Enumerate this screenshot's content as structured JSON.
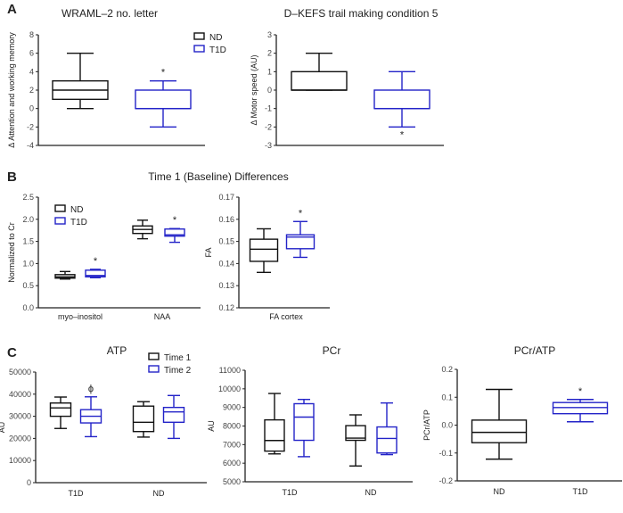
{
  "colors": {
    "group1": "#111111",
    "group2": "#2323c8"
  },
  "chart_data": [
    {
      "panel": "A",
      "type": "box",
      "title": "WRAML–2 no. letter",
      "xlabel": "",
      "ylabel": "Δ Attention and working memory",
      "ylim": [
        -4,
        8
      ],
      "yticks": [
        "8",
        "6",
        "4",
        "2",
        "0",
        "-2",
        "-4"
      ],
      "ytick_values": [
        8,
        6,
        4,
        2,
        0,
        -2,
        -4
      ],
      "legend": [
        "ND",
        "T1D"
      ],
      "categories": [
        ""
      ],
      "boxes": [
        {
          "series": "ND",
          "category": "",
          "min": 0,
          "q1": 1,
          "median": 2,
          "q3": 3,
          "max": 6,
          "mark": ""
        },
        {
          "series": "T1D",
          "category": "",
          "min": -2,
          "q1": 0,
          "median": 0,
          "q3": 2,
          "max": 3,
          "mark": "*"
        }
      ]
    },
    {
      "panel": "",
      "type": "box",
      "title": "D–KEFS trail making condition 5",
      "xlabel": "",
      "ylabel": "Δ Motor speed (AU)",
      "ylim": [
        -3,
        3
      ],
      "yticks": [
        "3",
        "2",
        "1",
        "0",
        "-1",
        "-2",
        "-3"
      ],
      "ytick_values": [
        3,
        2,
        1,
        0,
        -1,
        -2,
        -3
      ],
      "categories": [
        ""
      ],
      "boxes": [
        {
          "series": "ND",
          "category": "",
          "min": 0,
          "q1": 0,
          "median": 0,
          "q3": 1,
          "max": 2,
          "mark": ""
        },
        {
          "series": "T1D",
          "category": "",
          "min": -2,
          "q1": -1,
          "median": -1,
          "q3": 0,
          "max": 1,
          "mark": "*"
        }
      ]
    },
    {
      "panel": "B",
      "type": "box",
      "title": "Time 1 (Baseline) Differences",
      "ylabel": "Normalized to Cr",
      "ylim": [
        0,
        2.5
      ],
      "yticks": [
        "2.5",
        "2.0",
        "1.5",
        "1.0",
        "0.5",
        "0.0"
      ],
      "ytick_values": [
        2.5,
        2.0,
        1.5,
        1.0,
        0.5,
        0.0
      ],
      "legend": [
        "ND",
        "T1D"
      ],
      "categories": [
        "myo–inositol",
        "NAA"
      ],
      "boxes": [
        {
          "series": "ND",
          "category": "myo–inositol",
          "min": 0.65,
          "q1": 0.67,
          "median": 0.7,
          "q3": 0.75,
          "max": 0.82,
          "mark": ""
        },
        {
          "series": "T1D",
          "category": "myo–inositol",
          "min": 0.68,
          "q1": 0.7,
          "median": 0.73,
          "q3": 0.85,
          "max": 0.87,
          "mark": "*"
        },
        {
          "series": "ND",
          "category": "NAA",
          "min": 1.56,
          "q1": 1.68,
          "median": 1.77,
          "q3": 1.85,
          "max": 1.98,
          "mark": ""
        },
        {
          "series": "T1D",
          "category": "NAA",
          "min": 1.48,
          "q1": 1.62,
          "median": 1.65,
          "q3": 1.78,
          "max": 1.79,
          "mark": "*"
        }
      ]
    },
    {
      "panel": "",
      "type": "box",
      "title": "",
      "ylabel": "FA",
      "ylim": [
        0.12,
        0.17
      ],
      "yticks": [
        "0.17",
        "0.16",
        "0.15",
        "0.14",
        "0.13",
        "0.12"
      ],
      "ytick_values": [
        0.17,
        0.16,
        0.15,
        0.14,
        0.13,
        0.12
      ],
      "categories": [
        "FA cortex"
      ],
      "boxes": [
        {
          "series": "ND",
          "category": "FA cortex",
          "min": 0.136,
          "q1": 0.141,
          "median": 0.1465,
          "q3": 0.151,
          "max": 0.1557,
          "mark": ""
        },
        {
          "series": "T1D",
          "category": "FA cortex",
          "min": 0.1428,
          "q1": 0.1467,
          "median": 0.152,
          "q3": 0.153,
          "max": 0.159,
          "mark": "*"
        }
      ]
    },
    {
      "panel": "C",
      "type": "box",
      "title": "ATP",
      "ylabel": "AU",
      "ylim": [
        0,
        50000
      ],
      "yticks": [
        "50000",
        "40000",
        "30000",
        "20000",
        "10000",
        "0"
      ],
      "ytick_values": [
        50000,
        40000,
        30000,
        20000,
        10000,
        0
      ],
      "legend": [
        "Time 1",
        "Time 2"
      ],
      "categories": [
        "T1D",
        "ND"
      ],
      "boxes": [
        {
          "series": "Time 1",
          "category": "T1D",
          "min": 24500,
          "q1": 30000,
          "median": 33800,
          "q3": 36000,
          "max": 38700,
          "mark": ""
        },
        {
          "series": "Time 2",
          "category": "T1D",
          "min": 20800,
          "q1": 27000,
          "median": 30000,
          "q3": 33000,
          "max": 38800,
          "mark": "ϕ"
        },
        {
          "series": "Time 1",
          "category": "ND",
          "min": 20600,
          "q1": 23100,
          "median": 27300,
          "q3": 34600,
          "max": 36600,
          "mark": ""
        },
        {
          "series": "Time 2",
          "category": "ND",
          "min": 20000,
          "q1": 27300,
          "median": 32000,
          "q3": 34000,
          "max": 39400,
          "mark": ""
        }
      ]
    },
    {
      "panel": "",
      "type": "box",
      "title": "PCr",
      "ylabel": "AU",
      "ylim": [
        5000,
        11000
      ],
      "yticks": [
        "11000",
        "10000",
        "9000",
        "8000",
        "7000",
        "6000",
        "5000"
      ],
      "ytick_values": [
        11000,
        10000,
        9000,
        8000,
        7000,
        6000,
        5000
      ],
      "categories": [
        "T1D",
        "ND"
      ],
      "boxes": [
        {
          "series": "Time 1",
          "category": "T1D",
          "min": 6500,
          "q1": 6650,
          "median": 7220,
          "q3": 8330,
          "max": 9750,
          "mark": ""
        },
        {
          "series": "Time 2",
          "category": "T1D",
          "min": 6350,
          "q1": 7230,
          "median": 8480,
          "q3": 9200,
          "max": 9430,
          "mark": ""
        },
        {
          "series": "Time 1",
          "category": "ND",
          "min": 5850,
          "q1": 7230,
          "median": 7350,
          "q3": 8020,
          "max": 8600,
          "mark": ""
        },
        {
          "series": "Time 2",
          "category": "ND",
          "min": 6460,
          "q1": 6550,
          "median": 7330,
          "q3": 7950,
          "max": 9240,
          "mark": ""
        }
      ]
    },
    {
      "panel": "",
      "type": "box",
      "title": "PCr/ATP",
      "ylabel": "PCr/ATP",
      "ylim": [
        -0.2,
        0.2
      ],
      "yticks": [
        "0.2",
        "0.1",
        "0.0",
        "-0.1",
        "-0.2"
      ],
      "ytick_values": [
        0.2,
        0.1,
        0.0,
        -0.1,
        -0.2
      ],
      "categories": [
        "ND",
        "T1D"
      ],
      "boxes": [
        {
          "series": "ND",
          "category": "ND",
          "min": -0.122,
          "q1": -0.063,
          "median": -0.026,
          "q3": 0.018,
          "max": 0.128,
          "mark": ""
        },
        {
          "series": "T1D",
          "category": "T1D",
          "min": 0.012,
          "q1": 0.041,
          "median": 0.063,
          "q3": 0.081,
          "max": 0.092,
          "mark": "*"
        }
      ]
    }
  ]
}
